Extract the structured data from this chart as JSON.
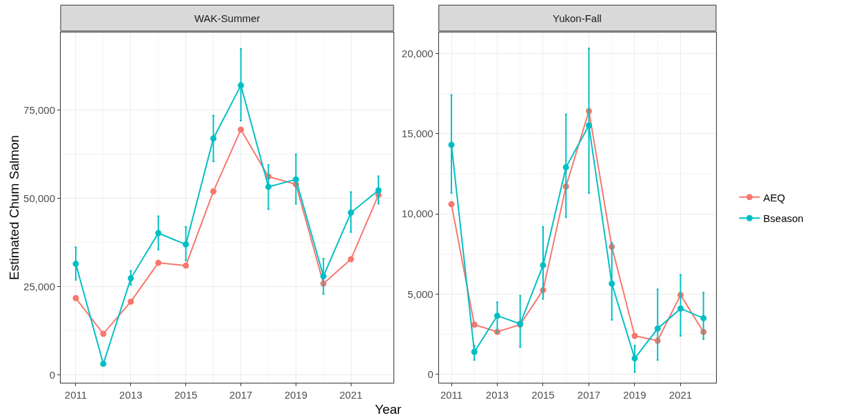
{
  "chart_data": [
    {
      "type": "line",
      "title": "WAK-Summer",
      "ylabel": "Estimated Chum Salmon",
      "xlabel": "Year",
      "x": [
        2011,
        2012,
        2013,
        2014,
        2015,
        2016,
        2017,
        2018,
        2019,
        2020,
        2021,
        2022
      ],
      "xlim": [
        2010.45,
        2022.55
      ],
      "xticks": [
        2011,
        2013,
        2015,
        2017,
        2019,
        2021
      ],
      "ylim": [
        -2150,
        97000
      ],
      "yticks": [
        0,
        {
          "value": 25000,
          "label": "25,000"
        },
        {
          "value": 50000,
          "label": "50,000"
        },
        {
          "value": 75000,
          "label": "75,000"
        }
      ],
      "grid": true,
      "marker": "circle",
      "line_style": "solid",
      "legend": "right",
      "series": [
        {
          "name": "AEQ",
          "color": "#f8766d",
          "values": [
            21800,
            11700,
            20800,
            31800,
            31000,
            52000,
            69500,
            56200,
            54000,
            25900,
            32800,
            51000
          ]
        },
        {
          "name": "Bseason",
          "color": "#00bfc4",
          "values": [
            31500,
            3200,
            27400,
            40200,
            37000,
            67000,
            82000,
            53300,
            55400,
            28000,
            46000,
            52300
          ],
          "errors": [
            [
              27000,
              36200
            ],
            null,
            [
              25500,
              29500
            ],
            [
              35500,
              45000
            ],
            [
              32500,
              42000
            ],
            [
              60500,
              73500
            ],
            [
              72000,
              92300
            ],
            [
              47000,
              59500
            ],
            [
              48500,
              62500
            ],
            [
              23000,
              33000
            ],
            [
              40500,
              51800
            ],
            [
              48500,
              56300
            ]
          ]
        }
      ]
    },
    {
      "type": "line",
      "title": "Yukon-Fall",
      "x": [
        2011,
        2012,
        2013,
        2014,
        2015,
        2016,
        2017,
        2018,
        2019,
        2020,
        2021,
        2022
      ],
      "xlim": [
        2010.45,
        2022.55
      ],
      "xticks": [
        2011,
        2013,
        2015,
        2017,
        2019,
        2021
      ],
      "ylim": [
        -520,
        21300
      ],
      "yticks": [
        0,
        {
          "value": 5000,
          "label": "5,000"
        },
        {
          "value": 10000,
          "label": "10,000"
        },
        {
          "value": 15000,
          "label": "15,000"
        },
        {
          "value": 20000,
          "label": "20,000"
        }
      ],
      "grid": true,
      "marker": "circle",
      "line_style": "solid",
      "series": [
        {
          "color": "#f8766d",
          "values": [
            10600,
            3100,
            2650,
            3100,
            5250,
            11700,
            16400,
            7950,
            2400,
            2100,
            4950,
            2650
          ]
        },
        {
          "color": "#00bfc4",
          "values": [
            14300,
            1400,
            3650,
            3150,
            6800,
            12900,
            15500,
            5650,
            1000,
            2850,
            4100,
            3500
          ],
          "errors": [
            [
              11300,
              17400
            ],
            [
              900,
              1800
            ],
            [
              2600,
              4500
            ],
            [
              1700,
              4900
            ],
            [
              4700,
              9200
            ],
            [
              9800,
              16200
            ],
            [
              11300,
              20300
            ],
            [
              3400,
              8200
            ],
            [
              150,
              1800
            ],
            [
              900,
              5300
            ],
            [
              2400,
              6200
            ],
            [
              2200,
              5100
            ]
          ]
        }
      ]
    }
  ]
}
